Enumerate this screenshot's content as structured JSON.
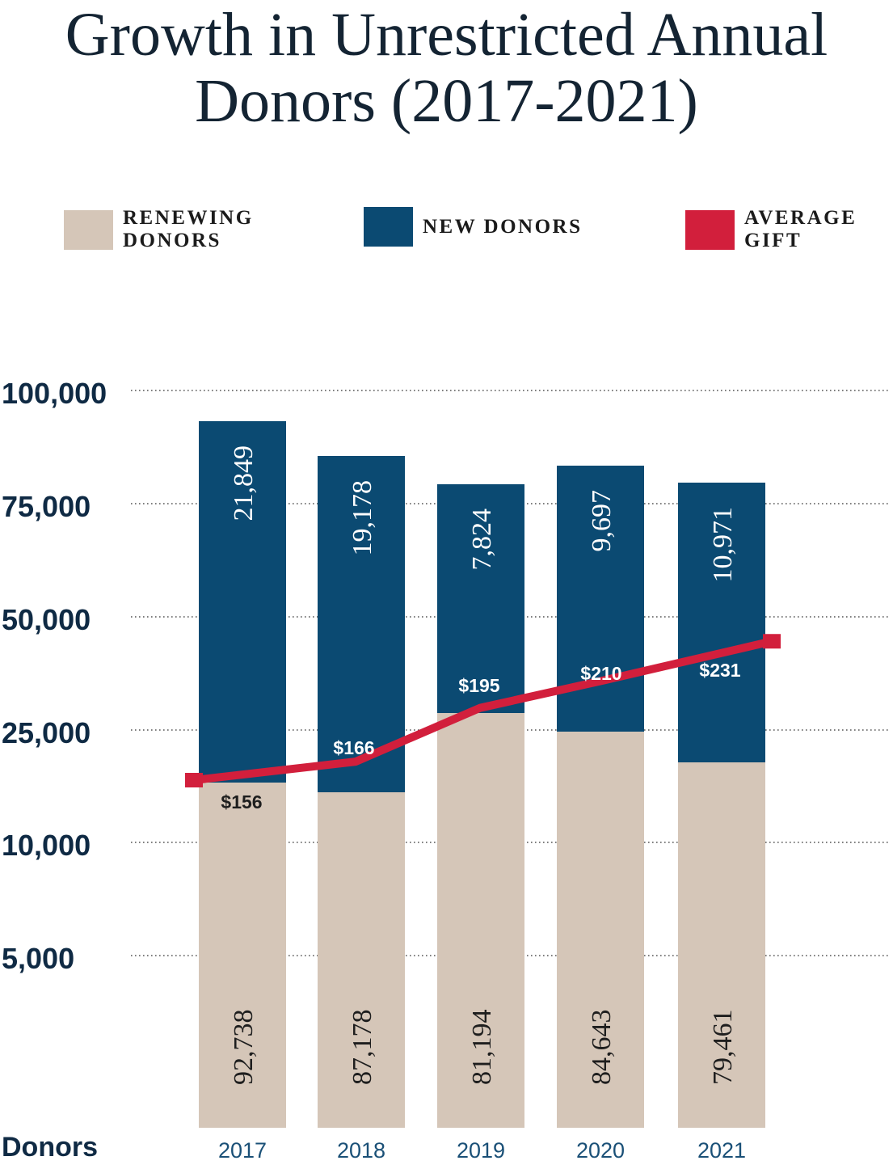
{
  "title_line1": "Growth in Unrestricted Annual",
  "title_line2": "Donors (2017-2021)",
  "colors": {
    "renewing": "#d5c6b8",
    "new": "#0b4a72",
    "average_gift": "#d21f3c",
    "axis_text": "#0f2a44",
    "year_text": "#1a5077",
    "grid": "#555555"
  },
  "legend": {
    "renewing": "RENEWING DONORS",
    "new": "NEW DONORS",
    "average": "AVERAGE GIFT"
  },
  "chart_data": {
    "type": "bar",
    "stacked": true,
    "categories": [
      "2017",
      "2018",
      "2019",
      "2020",
      "2021"
    ],
    "xlabel": "Donors",
    "y_tick_labels": [
      "100,000",
      "75,000",
      "50,000",
      "25,000",
      "10,000",
      "5,000"
    ],
    "grid": true,
    "legend_position": "top",
    "series": [
      {
        "name": "RENEWING DONORS",
        "values": [
          92738,
          87178,
          81194,
          84643,
          79461
        ],
        "labels": [
          "92,738",
          "87,178",
          "81,194",
          "84,643",
          "79,461"
        ]
      },
      {
        "name": "NEW DONORS",
        "values": [
          21849,
          19178,
          7824,
          9697,
          10971
        ],
        "labels": [
          "21,849",
          "19,178",
          "7,824",
          "9,697",
          "10,971"
        ]
      }
    ],
    "line_series": {
      "name": "AVERAGE GIFT",
      "values": [
        156,
        166,
        195,
        210,
        231
      ],
      "labels": [
        "$156",
        "$166",
        "$195",
        "$210",
        "$231"
      ]
    }
  }
}
